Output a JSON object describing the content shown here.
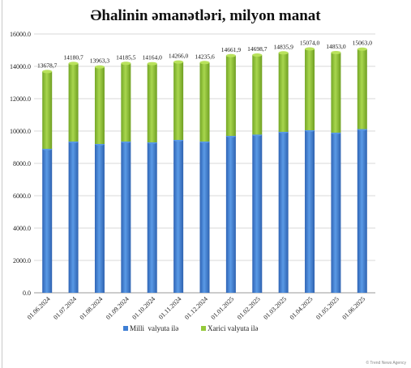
{
  "chart_data": {
    "type": "bar",
    "stacked": true,
    "title": "Əhalinin əmanətləri, milyon manat",
    "categories": [
      "01.06.2024",
      "01.07.2024",
      "01.08.2024",
      "01.09.2024",
      "01.10.2024",
      "01.11.2024",
      "01.12.2024",
      "01.01.2025",
      "01.02.2025",
      "01.03.2025",
      "01.04.2025",
      "01.05.2025",
      "01.06.2025"
    ],
    "series": [
      {
        "name": "Milli  valyuta ilə",
        "color": "#3f7fd4",
        "values": [
          8900,
          9350,
          9200,
          9350,
          9300,
          9450,
          9350,
          9700,
          9780,
          9950,
          10050,
          9900,
          10120
        ]
      },
      {
        "name": "Xarici valyuta ilə",
        "color": "#94c93a",
        "values": [
          4778.7,
          4830.7,
          4763.3,
          4835.5,
          4864.0,
          4816.0,
          4885.6,
          4961.9,
          4918.7,
          4885.9,
          5024.0,
          4953.0,
          4943.0
        ]
      }
    ],
    "totals": [
      13678.7,
      14180.7,
      13963.3,
      14185.5,
      14164.0,
      14266.0,
      14235.6,
      14661.9,
      14698.7,
      14835.9,
      15074.0,
      14853.0,
      15063.0
    ],
    "total_labels": [
      "13678,7",
      "14180,7",
      "13963,3",
      "14185,5",
      "14164,0",
      "14266,0",
      "14235,6",
      "14661,9",
      "14698,7",
      "14835,9",
      "15074,0",
      "14853,0",
      "15063,0"
    ],
    "ylim": [
      0,
      16000
    ],
    "yticks": [
      0,
      2000,
      4000,
      6000,
      8000,
      10000,
      12000,
      14000,
      16000
    ],
    "ytick_labels": [
      "0.0",
      "2000.0",
      "4000.0",
      "6000.0",
      "8000.0",
      "10000.0",
      "12000.0",
      "14000.0",
      "16000.0"
    ],
    "grid": true,
    "legend": "bottom",
    "xlabel": "",
    "ylabel": ""
  },
  "watermark": "© Trend News Agency"
}
